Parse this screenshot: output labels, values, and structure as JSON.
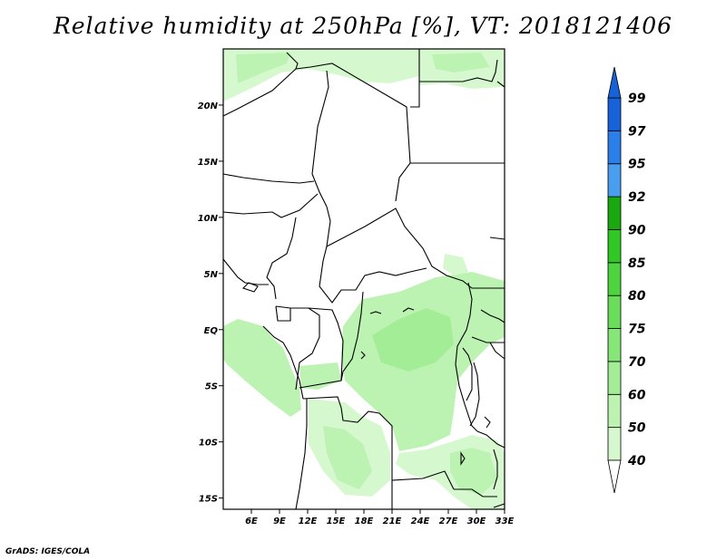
{
  "title": "Relative humidity at 250hPa [%], VT: 2018121406",
  "credit": "GrADS: IGES/COLA",
  "map": {
    "lon_range": [
      3,
      33
    ],
    "lat_range": [
      -16,
      25
    ],
    "lon_ticks": [
      "6E",
      "9E",
      "12E",
      "15E",
      "18E",
      "21E",
      "24E",
      "27E",
      "30E",
      "33E"
    ],
    "lon_tick_values": [
      6,
      9,
      12,
      15,
      18,
      21,
      24,
      27,
      30,
      33
    ],
    "lat_ticks": [
      "20N",
      "15N",
      "10N",
      "5N",
      "EQ",
      "5S",
      "10S",
      "15S"
    ],
    "lat_tick_values": [
      20,
      15,
      10,
      5,
      0,
      -5,
      -10,
      -15
    ],
    "field": "Relative humidity at 250hPa",
    "units": "%"
  },
  "colorbar": {
    "levels": [
      "40",
      "50",
      "60",
      "70",
      "75",
      "80",
      "85",
      "90",
      "92",
      "95",
      "97",
      "99"
    ],
    "colors": [
      "#f0fcec",
      "#d6f8cf",
      "#bdf3b2",
      "#a2ed95",
      "#86e677",
      "#6ade5a",
      "#4ed43e",
      "#31c825",
      "#1aa80f",
      "#4a9ef0",
      "#2a7fe8",
      "#1762d8"
    ],
    "under_color": "#ffffff",
    "over_color": "#1762d8"
  }
}
